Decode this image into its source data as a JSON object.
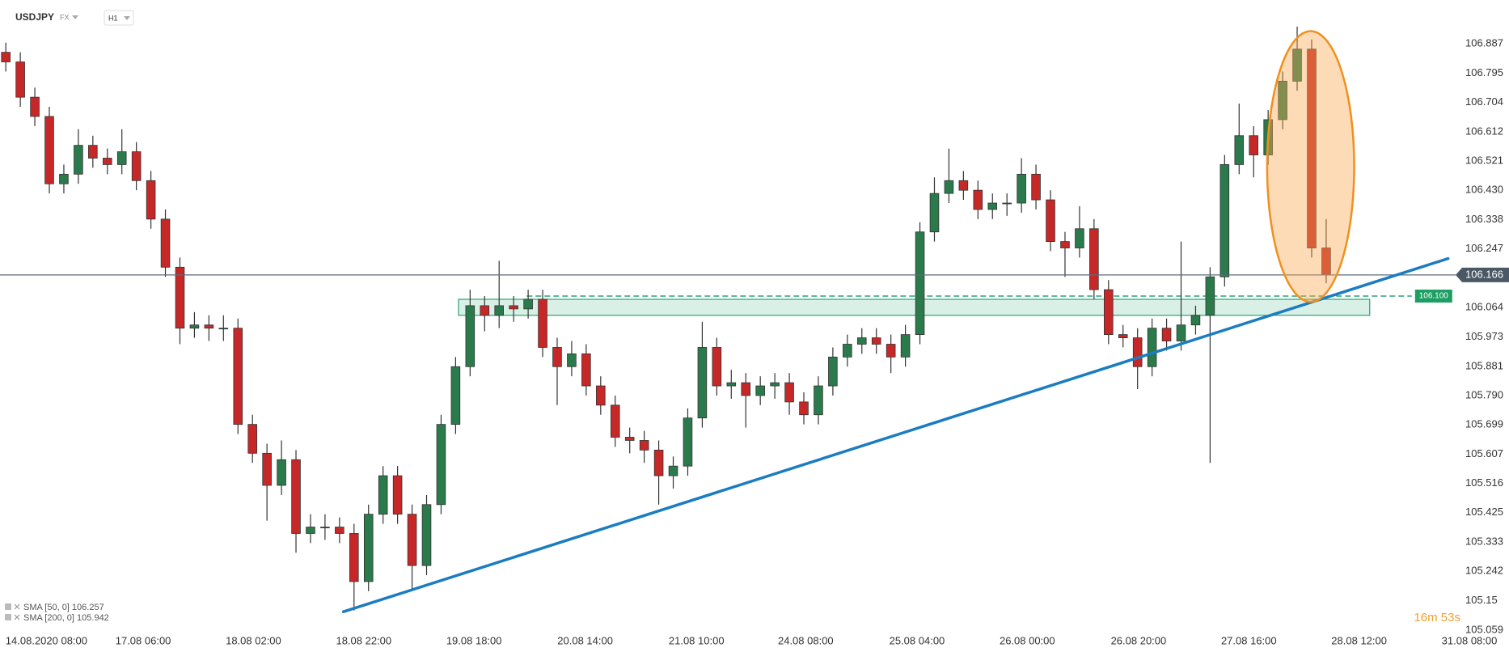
{
  "header": {
    "symbol": "USDJPY",
    "market": "FX",
    "interval": "H1"
  },
  "indicators": [
    "SMA [50, 0] 106.257",
    "SMA [200, 0] 105.942"
  ],
  "timer": "16m 53s",
  "chart_data": {
    "type": "candlestick",
    "open": [
      106.86,
      106.83,
      106.72,
      106.66,
      106.45,
      106.48,
      106.57,
      106.53,
      106.51,
      106.55,
      106.46,
      106.34,
      106.19,
      106.0,
      106.01,
      106.0,
      106.0,
      105.7,
      105.61,
      105.51,
      105.59,
      105.36,
      105.38,
      105.38,
      105.36,
      105.21,
      105.42,
      105.54,
      105.42,
      105.26,
      105.45,
      105.7,
      105.88,
      106.07,
      106.04,
      106.07,
      106.06,
      106.09,
      105.94,
      105.88,
      105.92,
      105.82,
      105.76,
      105.66,
      105.65,
      105.62,
      105.54,
      105.57,
      105.72,
      105.94,
      105.82,
      105.83,
      105.79,
      105.82,
      105.83,
      105.77,
      105.73,
      105.82,
      105.91,
      105.95,
      105.97,
      105.95,
      105.91,
      105.98,
      106.3,
      106.42,
      106.46,
      106.43,
      106.37,
      106.39,
      106.39,
      106.48,
      106.4,
      106.27,
      106.25,
      106.31,
      106.12,
      105.98,
      105.97,
      105.88,
      106.0,
      105.96,
      106.01,
      106.04,
      106.16,
      106.51,
      106.6,
      106.54,
      106.65,
      106.77,
      106.87,
      106.25
    ],
    "high": [
      106.89,
      106.86,
      106.75,
      106.69,
      106.51,
      106.62,
      106.6,
      106.56,
      106.62,
      106.58,
      106.49,
      106.37,
      106.22,
      106.05,
      106.04,
      106.04,
      106.03,
      105.73,
      105.64,
      105.65,
      105.62,
      105.42,
      105.42,
      105.41,
      105.39,
      105.45,
      105.57,
      105.57,
      105.45,
      105.48,
      105.73,
      105.91,
      106.12,
      106.1,
      106.21,
      106.1,
      106.12,
      106.12,
      105.97,
      105.96,
      105.95,
      105.85,
      105.79,
      105.69,
      105.68,
      105.65,
      105.6,
      105.75,
      106.02,
      105.97,
      105.87,
      105.86,
      105.85,
      105.86,
      105.86,
      105.8,
      105.85,
      105.94,
      105.98,
      106.0,
      106.0,
      105.98,
      106.01,
      106.33,
      106.47,
      106.56,
      106.49,
      106.46,
      106.42,
      106.42,
      106.53,
      106.51,
      106.43,
      106.3,
      106.38,
      106.34,
      106.15,
      106.01,
      106.0,
      106.03,
      106.03,
      106.27,
      106.07,
      106.19,
      106.54,
      106.7,
      106.63,
      106.68,
      106.8,
      106.94,
      106.9,
      106.34
    ],
    "low": [
      106.8,
      106.69,
      106.63,
      106.42,
      106.42,
      106.45,
      106.5,
      106.48,
      106.48,
      106.43,
      106.31,
      106.16,
      105.95,
      105.97,
      105.96,
      105.96,
      105.67,
      105.58,
      105.4,
      105.48,
      105.3,
      105.33,
      105.34,
      105.33,
      105.12,
      105.18,
      105.39,
      105.39,
      105.18,
      105.23,
      105.42,
      105.67,
      105.85,
      105.99,
      106.0,
      106.02,
      106.03,
      105.91,
      105.76,
      105.85,
      105.79,
      105.73,
      105.63,
      105.61,
      105.58,
      105.45,
      105.5,
      105.54,
      105.69,
      105.79,
      105.78,
      105.69,
      105.76,
      105.78,
      105.73,
      105.7,
      105.7,
      105.79,
      105.88,
      105.92,
      105.92,
      105.86,
      105.88,
      105.95,
      106.27,
      106.39,
      106.4,
      106.34,
      106.34,
      106.35,
      106.36,
      106.37,
      106.24,
      106.16,
      106.22,
      106.09,
      105.95,
      105.94,
      105.81,
      105.85,
      105.93,
      105.93,
      105.98,
      105.58,
      106.13,
      106.48,
      106.47,
      106.51,
      106.62,
      106.74,
      106.22,
      106.14
    ],
    "close": [
      106.83,
      106.72,
      106.66,
      106.45,
      106.48,
      106.57,
      106.53,
      106.51,
      106.55,
      106.46,
      106.34,
      106.19,
      106.0,
      106.01,
      106.0,
      106.0,
      105.7,
      105.61,
      105.51,
      105.59,
      105.36,
      105.38,
      105.38,
      105.36,
      105.21,
      105.42,
      105.54,
      105.42,
      105.26,
      105.45,
      105.7,
      105.88,
      106.07,
      106.04,
      106.07,
      106.06,
      106.09,
      105.94,
      105.88,
      105.92,
      105.82,
      105.76,
      105.66,
      105.65,
      105.62,
      105.54,
      105.57,
      105.72,
      105.94,
      105.82,
      105.83,
      105.79,
      105.82,
      105.83,
      105.77,
      105.73,
      105.82,
      105.91,
      105.95,
      105.97,
      105.95,
      105.91,
      105.98,
      106.3,
      106.42,
      106.46,
      106.43,
      106.37,
      106.39,
      106.39,
      106.48,
      106.4,
      106.27,
      106.25,
      106.31,
      106.12,
      105.98,
      105.97,
      105.88,
      106.0,
      105.96,
      106.01,
      106.04,
      106.16,
      106.51,
      106.6,
      106.54,
      106.65,
      106.77,
      106.87,
      106.25,
      106.166
    ],
    "colors": {
      "up": "#2b7a4b",
      "down": "#c62828"
    },
    "xlim": [
      -0.4,
      103.6
    ],
    "xticks": [
      {
        "value": 2.8,
        "label": "14.08.2020 08:00"
      },
      {
        "value": 9.47,
        "label": "17.08 06:00"
      },
      {
        "value": 17.07,
        "label": "18.08 02:00"
      },
      {
        "value": 24.67,
        "label": "18.08 22:00"
      },
      {
        "value": 32.27,
        "label": "19.08 18:00"
      },
      {
        "value": 39.93,
        "label": "20.08 14:00"
      },
      {
        "value": 47.6,
        "label": "21.08 10:00"
      },
      {
        "value": 55.13,
        "label": "24.08 08:00"
      },
      {
        "value": 62.8,
        "label": "25.08 04:00"
      },
      {
        "value": 70.4,
        "label": "26.08 00:00"
      },
      {
        "value": 78.07,
        "label": "26.08 20:00"
      },
      {
        "value": 85.67,
        "label": "27.08 16:00"
      },
      {
        "value": 93.27,
        "label": "28.08 12:00"
      },
      {
        "value": 100.87,
        "label": "31.08 08:00"
      }
    ],
    "ylim": [
      105.051,
      107.023
    ],
    "yticks": [
      106.887,
      106.795,
      106.704,
      106.612,
      106.521,
      {
        "value": 106.43,
        "label": "106.430"
      },
      106.338,
      106.247,
      106.064,
      105.973,
      105.881,
      {
        "value": 105.79,
        "label": "105.790"
      },
      105.699,
      105.607,
      105.516,
      105.425,
      105.333,
      105.242,
      105.15,
      105.059
    ],
    "current_price": 106.166,
    "level": {
      "value": 106.1,
      "label": "106.100",
      "x": [
        35.9,
        96.9
      ]
    },
    "zone": {
      "x": [
        31.2,
        94.0
      ],
      "y": [
        106.04,
        106.09
      ]
    },
    "trendline": {
      "x": [
        23.27,
        99.4
      ],
      "y": [
        105.116,
        106.217
      ]
    },
    "ellipse": {
      "x": 89.93,
      "y": 106.504,
      "rx": 3.0,
      "ry": 0.422
    }
  }
}
